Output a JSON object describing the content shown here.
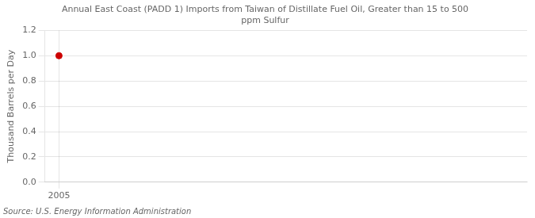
{
  "chart_data": {
    "type": "scatter",
    "title": "Annual East Coast (PADD 1) Imports from Taiwan of Distillate Fuel Oil, Greater than 15 to 500\nppm Sulfur",
    "ylabel": "Thousand Barrels per Day",
    "annotation": "Source: U.S. Energy Information Administration",
    "x": [
      2005
    ],
    "values": [
      1.0
    ],
    "color": "#cc0000",
    "marker": "circle",
    "xlim": [
      2004.4,
      2025
    ],
    "xticks": [
      2005
    ],
    "ylim": [
      0.0,
      1.2
    ],
    "yticks": [
      {
        "value": 0.0,
        "label": "0.0"
      },
      0.2,
      0.4,
      0.6,
      0.8,
      {
        "value": 1.0,
        "label": "1.0"
      },
      1.2
    ],
    "grid": true
  }
}
